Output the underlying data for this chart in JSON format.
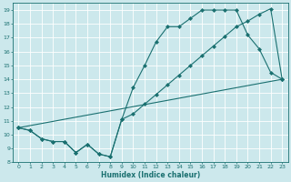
{
  "xlabel": "Humidex (Indice chaleur)",
  "bg_color": "#cce8ec",
  "grid_color": "#ffffff",
  "line_color": "#1a7070",
  "xlim": [
    -0.5,
    23.5
  ],
  "ylim": [
    8,
    19.5
  ],
  "xticks": [
    0,
    1,
    2,
    3,
    4,
    5,
    6,
    7,
    8,
    9,
    10,
    11,
    12,
    13,
    14,
    15,
    16,
    17,
    18,
    19,
    20,
    21,
    22,
    23
  ],
  "yticks": [
    8,
    9,
    10,
    11,
    12,
    13,
    14,
    15,
    16,
    17,
    18,
    19
  ],
  "line1_x": [
    0,
    1,
    2,
    3,
    4,
    5,
    6,
    7,
    8,
    9,
    10,
    11,
    12,
    13,
    14,
    15,
    16,
    17,
    18,
    19,
    20,
    21,
    22,
    23
  ],
  "line1_y": [
    10.5,
    10.3,
    9.7,
    9.5,
    9.5,
    8.7,
    9.3,
    8.6,
    8.4,
    11.1,
    13.4,
    15.0,
    16.7,
    17.8,
    17.8,
    18.4,
    19.0,
    19.0,
    19.0,
    19.0,
    17.2,
    16.2,
    14.5,
    14.0
  ],
  "line2_x": [
    0,
    1,
    2,
    3,
    4,
    5,
    6,
    7,
    8,
    9,
    10,
    11,
    12,
    13,
    14,
    15,
    16,
    17,
    18,
    19,
    20,
    21,
    22,
    23
  ],
  "line2_y": [
    10.5,
    10.3,
    9.7,
    9.5,
    9.5,
    8.7,
    9.3,
    8.6,
    8.4,
    11.1,
    11.5,
    12.2,
    12.9,
    13.6,
    14.3,
    15.0,
    15.7,
    16.4,
    17.1,
    17.8,
    18.2,
    18.7,
    19.1,
    14.0
  ],
  "line3_x": [
    0,
    23
  ],
  "line3_y": [
    10.5,
    14.0
  ]
}
